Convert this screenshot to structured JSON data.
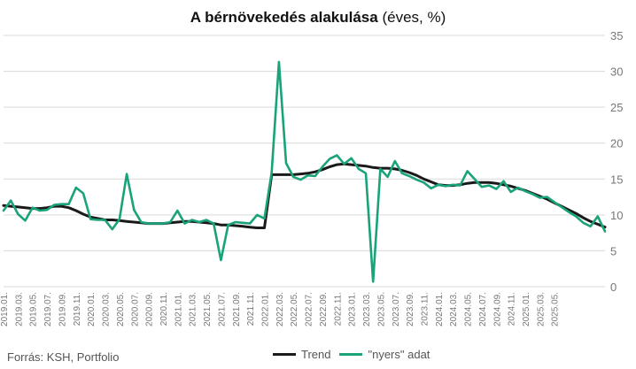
{
  "title": {
    "bold": "A bérnövekedés alakulása",
    "rest": " (éves, %)"
  },
  "source": "Forrás: KSH, Portfolio",
  "colors": {
    "trend": "#1a1a1a",
    "raw": "#1aa37a",
    "grid": "#d9d9d9"
  },
  "chart_data": {
    "type": "line",
    "title": "A bérnövekedés alakulása (éves, %)",
    "ylim": [
      0,
      35
    ],
    "yticks": [
      0,
      5,
      10,
      15,
      20,
      25,
      30,
      35
    ],
    "x_tick_labels": [
      "2019.01.",
      "2019.03.",
      "2019.05.",
      "2019.07.",
      "2019.09.",
      "2019.11.",
      "2020.01.",
      "2020.03.",
      "2020.05.",
      "2020.07.",
      "2020.09.",
      "2020.11.",
      "2021.01.",
      "2021.03.",
      "2021.05.",
      "2021.07.",
      "2021.09.",
      "2021.11.",
      "2022.01.",
      "2022.03.",
      "2022.05.",
      "2022.07.",
      "2022.09.",
      "2022.11.",
      "2023.01.",
      "2023.03.",
      "2023.05.",
      "2023.07.",
      "2023.09.",
      "2023.11.",
      "2024.01.",
      "2024.03.",
      "2024.05.",
      "2024.07.",
      "2024.09.",
      "2024.11.",
      "2025.01.",
      "2025.03.",
      "2025.05."
    ],
    "grid": true,
    "legend": "bottom",
    "series": [
      {
        "name": "Trend",
        "values": [
          11.3,
          11.2,
          11.1,
          11.0,
          10.9,
          10.9,
          11.0,
          11.2,
          11.2,
          11.0,
          10.6,
          10.1,
          9.7,
          9.5,
          9.3,
          9.3,
          9.2,
          9.1,
          9.0,
          8.9,
          8.8,
          8.8,
          8.8,
          8.9,
          9.0,
          9.1,
          9.1,
          9.0,
          8.9,
          8.8,
          8.6,
          8.6,
          8.5,
          8.4,
          8.3,
          8.2,
          8.2,
          15.6,
          15.6,
          15.6,
          15.6,
          15.7,
          15.8,
          16.0,
          16.3,
          16.7,
          17.0,
          17.1,
          17.0,
          16.9,
          16.8,
          16.6,
          16.5,
          16.5,
          16.4,
          16.2,
          15.9,
          15.5,
          15.0,
          14.6,
          14.2,
          14.1,
          14.1,
          14.2,
          14.4,
          14.5,
          14.5,
          14.5,
          14.4,
          14.2,
          14.0,
          13.7,
          13.4,
          13.0,
          12.6,
          12.2,
          11.7,
          11.2,
          10.7,
          10.2,
          9.6,
          9.1,
          8.7,
          8.3
        ]
      },
      {
        "name": "\"nyers\" adat",
        "values": [
          10.6,
          12.0,
          10.1,
          9.2,
          11.0,
          10.6,
          10.7,
          11.4,
          11.5,
          11.5,
          13.8,
          13.0,
          9.4,
          9.3,
          9.3,
          8.0,
          9.4,
          15.7,
          10.7,
          9.0,
          8.8,
          8.8,
          8.8,
          9.0,
          10.6,
          8.8,
          9.3,
          9.0,
          9.3,
          8.8,
          3.7,
          8.6,
          9.0,
          8.9,
          8.8,
          10.0,
          9.5,
          15.9,
          31.3,
          17.2,
          15.3,
          14.9,
          15.5,
          15.4,
          16.7,
          17.8,
          18.3,
          17.1,
          17.9,
          16.4,
          15.8,
          0.7,
          16.4,
          15.3,
          17.5,
          15.8,
          15.4,
          14.9,
          14.5,
          13.7,
          14.2,
          14.0,
          14.2,
          14.1,
          16.1,
          15.0,
          13.9,
          14.1,
          13.6,
          14.7,
          13.2,
          13.8,
          13.3,
          12.9,
          12.4,
          12.5,
          11.8,
          11.1,
          10.4,
          9.8,
          8.9,
          8.4,
          9.8,
          7.7
        ]
      }
    ]
  }
}
